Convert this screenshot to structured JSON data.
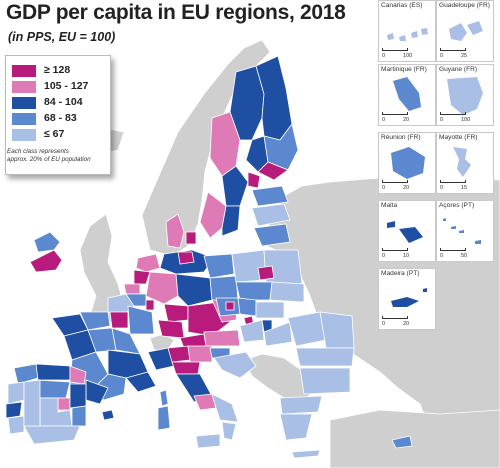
{
  "header": {
    "title": "GDP per capita in EU regions, 2018",
    "subtitle": "(in PPS, EU = 100)"
  },
  "legend": {
    "items": [
      {
        "label": "≥ 128",
        "color": "#b81b7c"
      },
      {
        "label": "105 - 127",
        "color": "#de7ab5"
      },
      {
        "label": "84 - 104",
        "color": "#1f4fa3"
      },
      {
        "label": "68 - 83",
        "color": "#5b88cf"
      },
      {
        "label": "≤ 67",
        "color": "#a9bfe6"
      }
    ],
    "note_line1": "Each class represents",
    "note_line2": "approx. 20% of EU population"
  },
  "colors": {
    "non_eu_land": "#cfcfcf",
    "sea": "#ffffff",
    "border": "#ffffff"
  },
  "insets": [
    {
      "label": "Canarias (ES)",
      "scale_left": "0",
      "scale_right": "100"
    },
    {
      "label": "Guadeloupe (FR)",
      "scale_left": "0",
      "scale_right": "25"
    },
    {
      "label": "Martinique (FR)",
      "scale_left": "0",
      "scale_right": "20"
    },
    {
      "label": "Guyane (FR)",
      "scale_left": "0",
      "scale_right": "100"
    },
    {
      "label": "Réunion (FR)",
      "scale_left": "0",
      "scale_right": "20"
    },
    {
      "label": "Mayotte (FR)",
      "scale_left": "0",
      "scale_right": "15"
    },
    {
      "label": "Malta",
      "scale_left": "0",
      "scale_right": "10"
    },
    {
      "label": "Açores (PT)",
      "scale_left": "0",
      "scale_right": "50"
    },
    {
      "label": "Madeira (PT)",
      "scale_left": "0",
      "scale_right": "20"
    }
  ]
}
